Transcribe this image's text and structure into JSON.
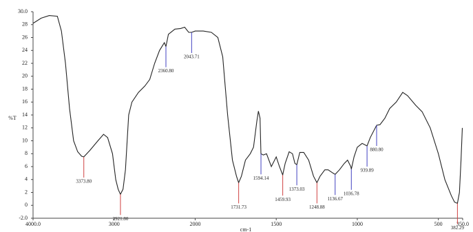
{
  "chart_data": {
    "type": "line",
    "xlabel": "cm-1",
    "ylabel": "%T",
    "xlim": [
      4000,
      350
    ],
    "ylim": [
      -2,
      30
    ],
    "xticks": [
      {
        "value": 4000,
        "label": "4000.0"
      },
      3000,
      2000,
      1500,
      1000,
      500,
      {
        "value": 350,
        "label": "350.0"
      }
    ],
    "yticks": [
      {
        "value": 30,
        "label": "30.0"
      },
      28,
      26,
      24,
      22,
      20,
      18,
      16,
      14,
      12,
      10,
      8,
      6,
      4,
      2,
      0,
      {
        "value": -2,
        "label": "-2.0"
      }
    ],
    "series": [
      {
        "color": "#222222",
        "x": [
          4000,
          3900,
          3800,
          3700,
          3650,
          3600,
          3550,
          3500,
          3450,
          3400,
          3373.8,
          3300,
          3200,
          3130,
          3080,
          3020,
          2980,
          2950,
          2921.8,
          2890,
          2860,
          2820,
          2780,
          2700,
          2620,
          2560,
          2500,
          2440,
          2380,
          2360.8,
          2330,
          2250,
          2180,
          2130,
          2080,
          2043.71,
          2000,
          1950,
          1900,
          1860,
          1830,
          1800,
          1770,
          1745,
          1731.73,
          1715,
          1690,
          1660,
          1640,
          1620,
          1610,
          1600,
          1594.14,
          1580,
          1560,
          1530,
          1500,
          1480,
          1459.93,
          1445,
          1420,
          1400,
          1385,
          1373.03,
          1355,
          1330,
          1300,
          1270,
          1248.88,
          1230,
          1200,
          1180,
          1150,
          1136.67,
          1110,
          1080,
          1060,
          1040,
          1036.78,
          1020,
          1000,
          970,
          939.89,
          920,
          880.8,
          860,
          830,
          800,
          760,
          720,
          690,
          640,
          600,
          550,
          500,
          460,
          420,
          400,
          382.29,
          370,
          360,
          352
        ],
        "values": [
          28.2,
          29,
          29.4,
          29.3,
          27,
          22,
          15,
          10,
          8.3,
          7.6,
          7.5,
          8.5,
          10,
          11,
          10.5,
          8,
          4,
          2.5,
          1.7,
          2.5,
          5.5,
          14,
          16,
          17.5,
          18.5,
          19.5,
          22,
          24,
          25.2,
          24.6,
          26.5,
          27.3,
          27.4,
          27.6,
          26.8,
          26.8,
          27,
          27,
          26.8,
          26,
          23,
          14,
          7,
          4.5,
          3.5,
          4.5,
          7,
          8,
          9,
          13,
          14.6,
          13.5,
          8,
          7.8,
          8,
          6,
          7.5,
          6,
          4.7,
          6.5,
          8.3,
          8,
          6.5,
          6.3,
          8.2,
          8.2,
          7,
          4.5,
          3.5,
          4.5,
          5.5,
          5.5,
          5,
          4.8,
          5.5,
          6.5,
          7,
          6,
          5.6,
          7.5,
          9,
          9.6,
          9.2,
          10.5,
          12.4,
          12.5,
          13.5,
          15,
          16,
          17.5,
          17,
          15.5,
          14.5,
          12,
          8,
          4,
          1.5,
          0.5,
          0.3,
          2,
          7,
          12
        ]
      }
    ],
    "annotations": [
      {
        "x": 3373.8,
        "y": 7.5,
        "label": "3373.80",
        "color": "#d04040"
      },
      {
        "x": 2921.8,
        "y": 1.7,
        "label": "2921.80",
        "color": "#d04040"
      },
      {
        "x": 2360.8,
        "y": 24.6,
        "label": "2360.80",
        "color": "#4040c0"
      },
      {
        "x": 2043.71,
        "y": 26.8,
        "label": "2043.71",
        "color": "#4040c0"
      },
      {
        "x": 1731.73,
        "y": 3.5,
        "label": "1731.73",
        "color": "#d04040"
      },
      {
        "x": 1594.14,
        "y": 8,
        "label": "1594.14",
        "color": "#4040c0"
      },
      {
        "x": 1459.93,
        "y": 4.7,
        "label": "1459.93",
        "color": "#d04040"
      },
      {
        "x": 1373.03,
        "y": 6.3,
        "label": "1373.03",
        "color": "#4040c0"
      },
      {
        "x": 1248.88,
        "y": 3.5,
        "label": "1248.88",
        "color": "#d04040"
      },
      {
        "x": 1136.67,
        "y": 4.8,
        "label": "1136.67",
        "color": "#4040c0"
      },
      {
        "x": 1036.78,
        "y": 5.6,
        "label": "1036.78",
        "color": "#4040c0"
      },
      {
        "x": 939.89,
        "y": 9.2,
        "label": "939.89",
        "color": "#4040c0"
      },
      {
        "x": 880.8,
        "y": 12.4,
        "label": "880.80",
        "color": "#4040c0"
      },
      {
        "x": 382.29,
        "y": 0.3,
        "label": "382.29",
        "color": "#d04040"
      }
    ]
  }
}
